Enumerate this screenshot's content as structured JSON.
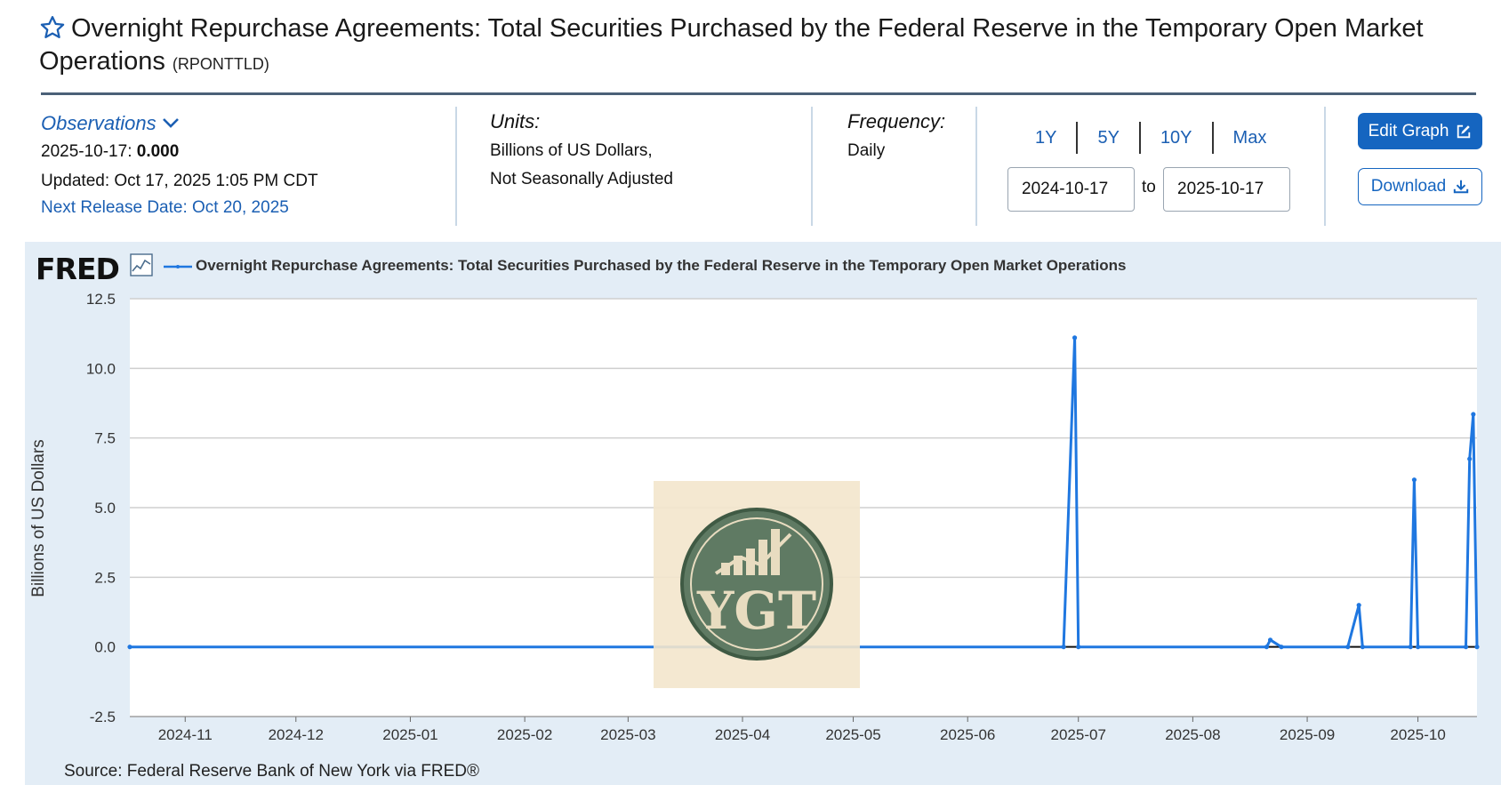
{
  "header": {
    "title": "Overnight Repurchase Agreements: Total Securities Purchased by the Federal Reserve in the Temporary Open Market Operations",
    "series_id": "(RPONTTLD)"
  },
  "observations": {
    "label": "Observations",
    "date": "2025-10-17:",
    "value": "0.000",
    "updated": "Updated: Oct 17, 2025 1:05 PM CDT",
    "next_release": "Next Release Date: Oct 20, 2025"
  },
  "units": {
    "label": "Units:",
    "line1": "Billions of US Dollars,",
    "line2": "Not Seasonally Adjusted"
  },
  "frequency": {
    "label": "Frequency:",
    "value": "Daily"
  },
  "range": {
    "buttons": [
      "1Y",
      "5Y",
      "10Y",
      "Max"
    ],
    "from": "2024-10-17",
    "to": "2025-10-17",
    "sep": "to"
  },
  "actions": {
    "edit_label": "Edit Graph",
    "download_label": "Download"
  },
  "chart": {
    "logo": "FRED",
    "legend_title": "Overnight Repurchase Agreements: Total Securities Purchased by the Federal Reserve in the Temporary Open Market Operations",
    "y_label": "Billions of US Dollars",
    "source": "Source: Federal Reserve Bank of New York via FRED®",
    "watermark_text": "YGT",
    "line_color": "#1f77e0"
  },
  "chart_data": {
    "type": "line",
    "x_start": "2024-10-17",
    "x_end": "2025-10-17",
    "x_ticks": [
      "2024-11",
      "2024-12",
      "2025-01",
      "2025-02",
      "2025-03",
      "2025-04",
      "2025-05",
      "2025-06",
      "2025-07",
      "2025-08",
      "2025-09",
      "2025-10"
    ],
    "y_ticks": [
      "12.5",
      "10.0",
      "7.5",
      "5.0",
      "2.5",
      "0.0",
      "-2.5"
    ],
    "ylim": [
      -2.5,
      12.5
    ],
    "ylabel": "Billions of US Dollars",
    "grid": true,
    "series": [
      {
        "x": [
          "2024-10-17",
          "2025-06-27",
          "2025-06-30",
          "2025-07-01",
          "2025-08-21",
          "2025-08-22",
          "2025-08-25",
          "2025-09-12",
          "2025-09-15",
          "2025-09-16",
          "2025-09-29",
          "2025-09-30",
          "2025-10-01",
          "2025-10-14",
          "2025-10-15",
          "2025-10-16",
          "2025-10-17"
        ],
        "values": [
          0.0,
          0.0,
          11.1,
          0.0,
          0.0,
          0.25,
          0.0,
          0.0,
          1.5,
          0.0,
          0.0,
          6.0,
          0.0,
          0.0,
          6.75,
          8.35,
          0.0
        ]
      }
    ]
  }
}
